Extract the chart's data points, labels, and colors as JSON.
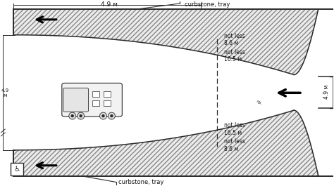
{
  "bg_color": "#ffffff",
  "line_color": "#2a2a2a",
  "hatch_color": "#555555",
  "arrow_color": "#111111",
  "text_color": "#111111",
  "labels": {
    "top_width": "4.9 м",
    "right_width": "4.9 м",
    "left_vertical": "4.9\nм",
    "curbstone_top": "curbstone, tray",
    "curbstone_bottom": "curbstone, tray",
    "not_less_8_6_top": "not less\n8.6 м",
    "not_less_16_5_top": "not less\n16.5 м",
    "not_less_16_5_bot": "not less\n16.5 м",
    "not_less_8_6_bot": "not less\n8.6 м"
  },
  "figsize": [
    4.74,
    2.65
  ],
  "dpi": 100
}
